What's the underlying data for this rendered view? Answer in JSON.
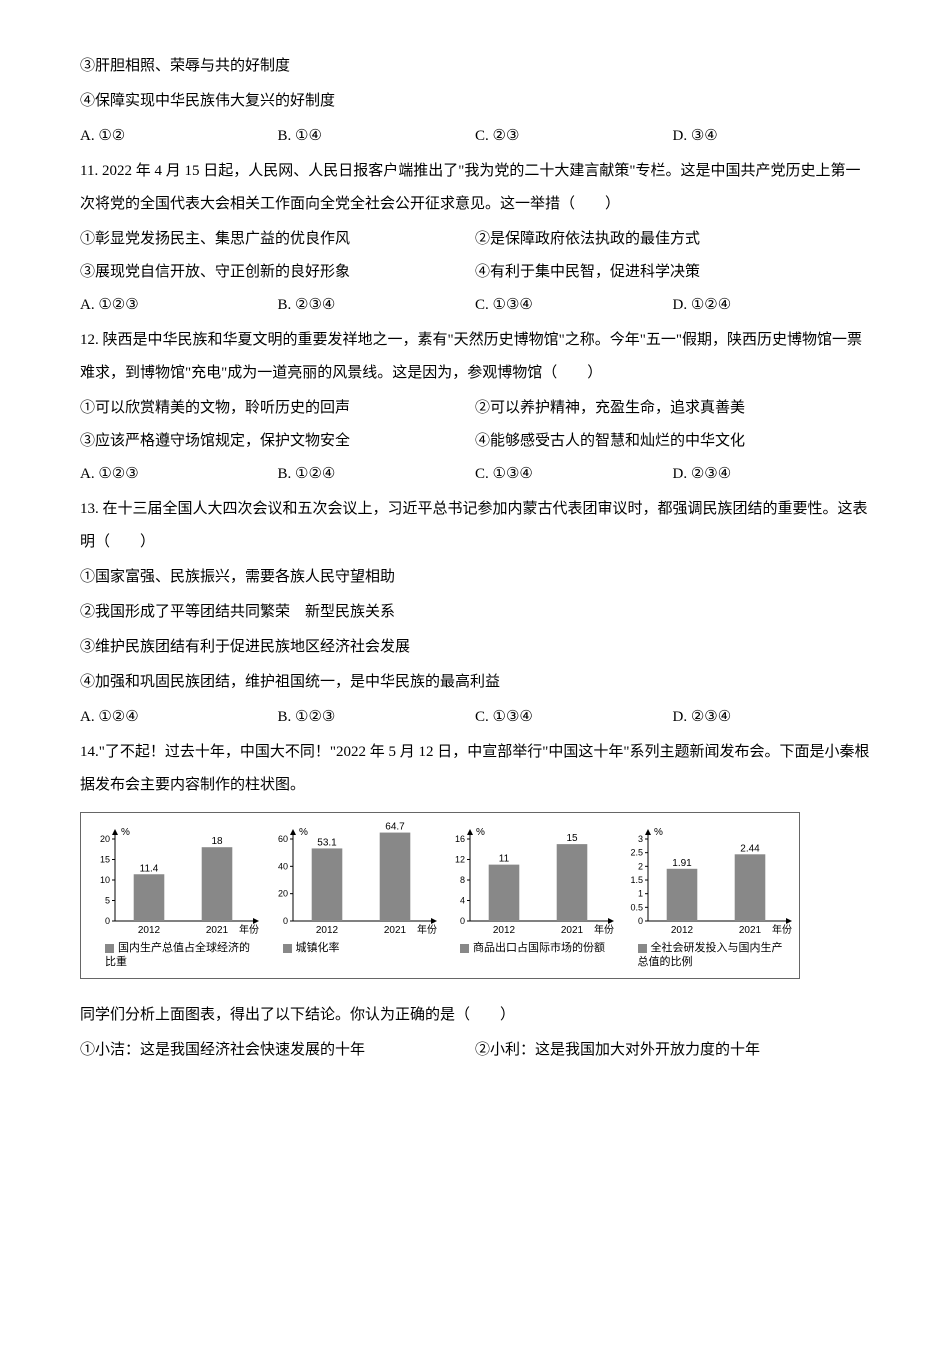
{
  "q10_cont": {
    "stmt3": "③肝胆相照、荣辱与共的好制度",
    "stmt4": "④保障实现中华民族伟大复兴的好制度",
    "opts": {
      "A": "A. ①②",
      "B": "B. ①④",
      "C": "C. ②③",
      "D": "D. ③④"
    }
  },
  "q11": {
    "stem": "11. 2022 年 4 月 15 日起，人民网、人民日报客户端推出了\"我为党的二十大建言献策\"专栏。这是中国共产党历史上第一次将党的全国代表大会相关工作面向全党全社会公开征求意见。这一举措（　　）",
    "s1": "①彰显党发扬民主、集思广益的优良作风",
    "s2": "②是保障政府依法执政的最佳方式",
    "s3": "③展现党自信开放、守正创新的良好形象",
    "s4": "④有利于集中民智，促进科学决策",
    "opts": {
      "A": "A. ①②③",
      "B": "B. ②③④",
      "C": "C. ①③④",
      "D": "D. ①②④"
    }
  },
  "q12": {
    "stem": "12. 陕西是中华民族和华夏文明的重要发祥地之一，素有\"天然历史博物馆\"之称。今年\"五一\"假期，陕西历史博物馆一票难求，到博物馆\"充电\"成为一道亮丽的风景线。这是因为，参观博物馆（　　）",
    "s1": "①可以欣赏精美的文物，聆听历史的回声",
    "s2": "②可以养护精神，充盈生命，追求真善美",
    "s3": "③应该严格遵守场馆规定，保护文物安全",
    "s4": "④能够感受古人的智慧和灿烂的中华文化",
    "opts": {
      "A": "A. ①②③",
      "B": "B. ①②④",
      "C": "C. ①③④",
      "D": "D. ②③④"
    }
  },
  "q13": {
    "stem": "13. 在十三届全国人大四次会议和五次会议上，习近平总书记参加内蒙古代表团审议时，都强调民族团结的重要性。这表明（　　）",
    "s1": "①国家富强、民族振兴，需要各族人民守望相助",
    "s2": "②我国形成了平等团结共同繁荣　新型民族关系",
    "s3": "③维护民族团结有利于促进民族地区经济社会发展",
    "s4": "④加强和巩固民族团结，维护祖国统一，是中华民族的最高利益",
    "opts": {
      "A": "A. ①②④",
      "B": "B. ①②③",
      "C": "C. ①③④",
      "D": "D. ②③④"
    }
  },
  "q14": {
    "stem": "14.\"了不起！过去十年，中国大不同！\"2022 年 5 月 12 日，中宣部举行\"中国这十年\"系列主题新闻发布会。下面是小秦根据发布会主要内容制作的柱状图。",
    "after": "同学们分析上面图表，得出了以下结论。你认为正确的是（　　）",
    "s1": "①小洁：这是我国经济社会快速发展的十年",
    "s2": "②小利：这是我国加大对外开放力度的十年"
  },
  "charts": [
    {
      "ymax": 20,
      "ytick": 5,
      "x": [
        "2012",
        "2021"
      ],
      "values": [
        11.4,
        18
      ],
      "bar_color": "#888888",
      "legend": "国内生产总值占全球经济的比重",
      "unit": "%"
    },
    {
      "ymax": 60,
      "ytick": 20,
      "x": [
        "2012",
        "2021"
      ],
      "values": [
        53.1,
        64.7
      ],
      "bar_color": "#888888",
      "legend": "城镇化率",
      "unit": "%"
    },
    {
      "ymax": 16,
      "ytick": 4,
      "x": [
        "2012",
        "2021"
      ],
      "values": [
        11,
        15
      ],
      "bar_color": "#888888",
      "legend": "商品出口占国际市场的份额",
      "unit": "%"
    },
    {
      "ymax": 3,
      "ytick": 0.5,
      "x": [
        "2012",
        "2021"
      ],
      "values": [
        1.91,
        2.44
      ],
      "bar_color": "#888888",
      "legend": "全社会研发投入与国内生产总值的比例",
      "unit": "%"
    }
  ],
  "labels": {
    "year_axis": "年份"
  }
}
